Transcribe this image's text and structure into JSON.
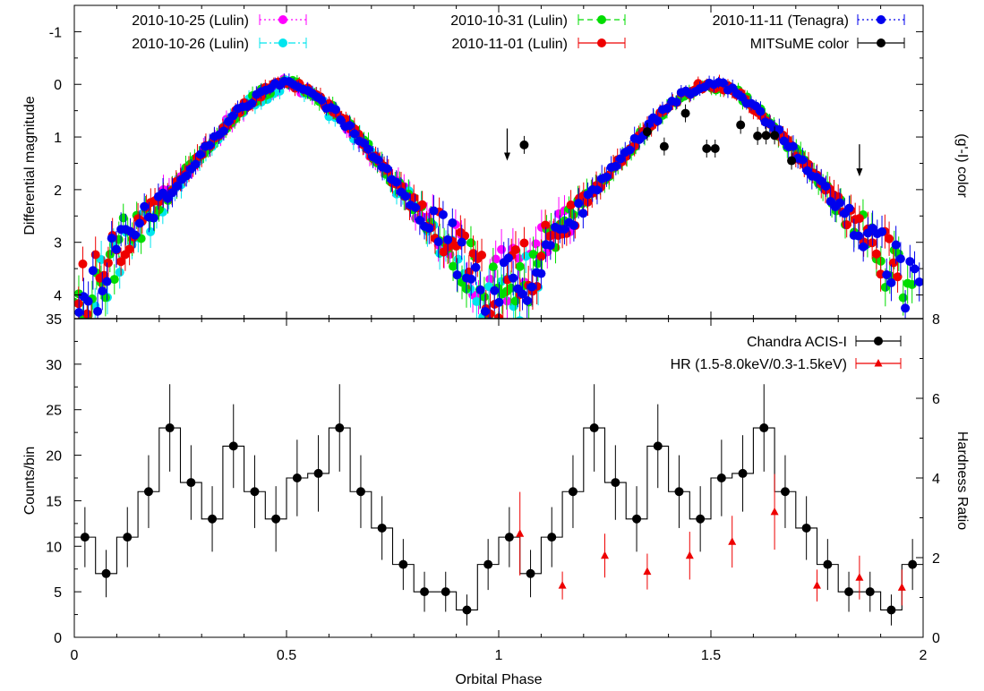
{
  "xlabel": "Orbital Phase",
  "chart_data": [
    {
      "type": "scatter",
      "xlim": [
        0,
        2
      ],
      "ylim": [
        -1.5,
        4.45
      ],
      "y_inverted": true,
      "ylabel": "Differential magnitude",
      "y2label": "(g'-I) color",
      "yticks": [
        -1,
        0,
        1,
        2,
        3,
        4
      ],
      "ytick_labels": [
        "-1",
        "0",
        "1",
        "2",
        "3",
        "4"
      ],
      "xticks": [
        0,
        0.5,
        1,
        1.5,
        2
      ],
      "legend_position": "top",
      "series": [
        {
          "name": "2010-10-25 (Lulin)",
          "color": "#ff00ff",
          "marker": "circle",
          "line": "dotted"
        },
        {
          "name": "2010-10-26 (Lulin)",
          "color": "#00e5ee",
          "marker": "circle",
          "line": "dash-dot"
        },
        {
          "name": "2010-10-31 (Lulin)",
          "color": "#00dd00",
          "marker": "circle",
          "line": "dashed"
        },
        {
          "name": "2010-11-01 (Lulin)",
          "color": "#ee0000",
          "marker": "circle",
          "line": "solid"
        },
        {
          "name": "2010-11-11 (Tenagra)",
          "color": "#0000ee",
          "marker": "circle",
          "line": "dotted"
        },
        {
          "name": "MITSuME color",
          "color": "#000000",
          "marker": "circle",
          "line": "solid",
          "x": [
            1.06,
            1.35,
            1.39,
            1.44,
            1.49,
            1.51,
            1.57,
            1.61,
            1.63,
            1.65,
            1.69
          ],
          "y": [
            1.15,
            0.9,
            1.18,
            0.55,
            1.22,
            1.22,
            0.77,
            0.98,
            0.97,
            0.97,
            1.45
          ]
        }
      ],
      "arrows": [
        {
          "x": 1.02,
          "y": 1.45
        },
        {
          "x": 1.85,
          "y": 1.75
        }
      ]
    },
    {
      "type": "line",
      "xlim": [
        0,
        2
      ],
      "ylim": [
        0,
        35
      ],
      "y2lim": [
        0,
        8
      ],
      "ylabel": "Counts/bin",
      "y2label": "Hardness Ratio",
      "yticks": [
        0,
        5,
        10,
        15,
        20,
        25,
        30,
        35
      ],
      "ytick_labels": [
        "0",
        "5",
        "10",
        "15",
        "20",
        "25",
        "30",
        "35"
      ],
      "y2ticks": [
        0,
        2,
        4,
        6,
        8
      ],
      "y2tick_labels": [
        "0",
        "2",
        "4",
        "6",
        "8"
      ],
      "xticks": [
        0,
        0.5,
        1,
        1.5,
        2
      ],
      "xtick_labels": [
        "0",
        "0.5",
        "1",
        "1.5",
        "2"
      ],
      "legend_position": "top-right",
      "series": [
        {
          "name": "Chandra ACIS-I",
          "color": "#000000",
          "marker": "circle",
          "step": true,
          "x": [
            0.025,
            0.075,
            0.125,
            0.175,
            0.225,
            0.275,
            0.325,
            0.375,
            0.425,
            0.475,
            0.525,
            0.575,
            0.625,
            0.675,
            0.725,
            0.775,
            0.825,
            0.875,
            0.925,
            0.975,
            1.025,
            1.075,
            1.125,
            1.175,
            1.225,
            1.275,
            1.325,
            1.375,
            1.425,
            1.475,
            1.525,
            1.575,
            1.625,
            1.675,
            1.725,
            1.775,
            1.825,
            1.875,
            1.925,
            1.975
          ],
          "y": [
            11,
            7,
            11,
            16,
            23,
            17,
            13,
            21,
            16,
            13,
            17.5,
            18,
            23,
            16,
            12,
            8,
            5,
            5,
            3,
            8,
            11,
            7,
            11,
            16,
            23,
            17,
            13,
            21,
            16,
            13,
            17.5,
            18,
            23,
            16,
            12,
            8,
            5,
            5,
            3,
            8
          ],
          "err": [
            3.3,
            2.6,
            3.3,
            4.0,
            4.8,
            4.1,
            3.6,
            4.6,
            4.0,
            3.6,
            4.2,
            4.2,
            4.8,
            4.0,
            3.5,
            2.8,
            2.2,
            2.2,
            1.7,
            2.8,
            3.3,
            2.6,
            3.3,
            4.0,
            4.8,
            4.1,
            3.6,
            4.6,
            4.0,
            3.6,
            4.2,
            4.2,
            4.8,
            4.0,
            3.5,
            2.8,
            2.2,
            2.2,
            1.7,
            2.8
          ]
        },
        {
          "name": "HR (1.5-8.0keV/0.3-1.5keV)",
          "color": "#ee0000",
          "marker": "triangle",
          "axis": "y2",
          "x": [
            1.05,
            1.15,
            1.25,
            1.35,
            1.45,
            1.55,
            1.65,
            1.75,
            1.85,
            1.95
          ],
          "y": [
            2.6,
            1.3,
            2.05,
            1.65,
            2.05,
            2.4,
            3.15,
            1.3,
            1.5,
            1.25
          ],
          "err": [
            1.05,
            0.35,
            0.55,
            0.45,
            0.6,
            0.65,
            0.95,
            0.4,
            0.55,
            0.45
          ]
        }
      ]
    }
  ]
}
